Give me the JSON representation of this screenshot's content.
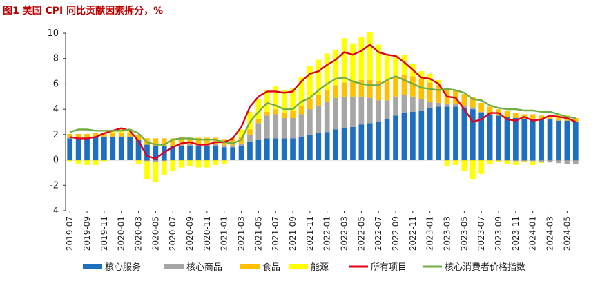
{
  "figure": {
    "title": "图1  美国 CPI 同比贡献因素拆分，%"
  },
  "chart_data": {
    "type": "bar",
    "stacked": true,
    "x": [
      "2019-07",
      "2019-08",
      "2019-09",
      "2019-10",
      "2019-11",
      "2019-12",
      "2020-01",
      "2020-02",
      "2020-03",
      "2020-04",
      "2020-05",
      "2020-06",
      "2020-07",
      "2020-08",
      "2020-09",
      "2020-10",
      "2020-11",
      "2020-12",
      "2021-01",
      "2021-02",
      "2021-03",
      "2021-04",
      "2021-05",
      "2021-06",
      "2021-07",
      "2021-08",
      "2021-09",
      "2021-10",
      "2021-11",
      "2021-12",
      "2022-01",
      "2022-02",
      "2022-03",
      "2022-04",
      "2022-05",
      "2022-06",
      "2022-07",
      "2022-08",
      "2022-09",
      "2022-10",
      "2022-11",
      "2022-12",
      "2023-01",
      "2023-02",
      "2023-03",
      "2023-04",
      "2023-05",
      "2023-06",
      "2023-07",
      "2023-08",
      "2023-09",
      "2023-10",
      "2023-11",
      "2023-12",
      "2024-01",
      "2024-02",
      "2024-03",
      "2024-04",
      "2024-05",
      "2024-06"
    ],
    "x_tick_labels": [
      "2019-07",
      "2019-09",
      "2019-11",
      "2020-01",
      "2020-03",
      "2020-05",
      "2020-07",
      "2020-09",
      "2020-11",
      "2021-01",
      "2021-03",
      "2021-05",
      "2021-07",
      "2021-09",
      "2021-11",
      "2022-01",
      "2022-03",
      "2022-05",
      "2022-07",
      "2022-09",
      "2022-11",
      "2023-01",
      "2023-03",
      "2023-05",
      "2023-07",
      "2023-09",
      "2023-11",
      "2024-01",
      "2024-03",
      "2024-05"
    ],
    "ylim": [
      -4,
      10
    ],
    "y_ticks": [
      -4,
      -2,
      0,
      2,
      4,
      6,
      8,
      10
    ],
    "legend_position": "bottom",
    "series": [
      {
        "name": "核心服务",
        "kind": "bar",
        "color": "#1f6fc0",
        "values": [
          1.7,
          1.7,
          1.7,
          1.8,
          1.8,
          1.8,
          1.8,
          1.8,
          1.6,
          1.2,
          1.1,
          1.1,
          1.1,
          1.1,
          1.1,
          1.1,
          1.1,
          1.1,
          1.0,
          1.0,
          1.1,
          1.4,
          1.6,
          1.7,
          1.7,
          1.7,
          1.7,
          1.8,
          2.0,
          2.1,
          2.2,
          2.4,
          2.5,
          2.6,
          2.8,
          2.9,
          3.0,
          3.2,
          3.5,
          3.7,
          3.8,
          3.9,
          4.1,
          4.2,
          4.2,
          4.2,
          4.1,
          4.0,
          3.7,
          3.6,
          3.5,
          3.4,
          3.3,
          3.2,
          3.2,
          3.2,
          3.2,
          3.1,
          3.1,
          3.0
        ]
      },
      {
        "name": "核心商品",
        "kind": "bar",
        "color": "#a6a6a6",
        "values": [
          0.05,
          0.05,
          0.05,
          0.05,
          0.05,
          0.05,
          0.05,
          0.05,
          0.0,
          -0.1,
          -0.15,
          -0.1,
          0.0,
          0.1,
          0.15,
          0.15,
          0.15,
          0.15,
          0.15,
          0.15,
          0.2,
          0.6,
          1.3,
          1.8,
          1.9,
          1.6,
          1.6,
          1.8,
          2.0,
          2.2,
          2.4,
          2.5,
          2.5,
          2.4,
          2.2,
          2.0,
          1.7,
          1.5,
          1.5,
          1.4,
          1.2,
          0.9,
          0.5,
          0.3,
          0.2,
          0.2,
          0.2,
          0.15,
          0.1,
          0.0,
          -0.05,
          -0.05,
          -0.1,
          -0.1,
          -0.1,
          -0.15,
          -0.2,
          -0.25,
          -0.3,
          -0.35
        ]
      },
      {
        "name": "食品",
        "kind": "bar",
        "color": "#ffc000",
        "values": [
          0.3,
          0.3,
          0.3,
          0.3,
          0.3,
          0.3,
          0.3,
          0.3,
          0.4,
          0.5,
          0.6,
          0.6,
          0.6,
          0.6,
          0.5,
          0.5,
          0.5,
          0.5,
          0.5,
          0.5,
          0.5,
          0.4,
          0.3,
          0.3,
          0.4,
          0.4,
          0.6,
          0.7,
          0.8,
          0.8,
          0.9,
          1.0,
          1.1,
          1.2,
          1.3,
          1.4,
          1.5,
          1.6,
          1.6,
          1.6,
          1.6,
          1.6,
          1.5,
          1.4,
          1.2,
          1.1,
          0.9,
          0.8,
          0.7,
          0.6,
          0.5,
          0.5,
          0.4,
          0.4,
          0.4,
          0.3,
          0.3,
          0.3,
          0.3,
          0.3
        ]
      },
      {
        "name": "能源",
        "kind": "bar",
        "color": "#ffff00",
        "values": [
          -0.1,
          -0.3,
          -0.4,
          -0.4,
          -0.1,
          0.2,
          0.3,
          0.1,
          -0.3,
          -1.4,
          -1.6,
          -1.1,
          -0.9,
          -0.6,
          -0.5,
          -0.6,
          -0.6,
          -0.4,
          -0.3,
          0.1,
          0.6,
          1.4,
          1.6,
          1.7,
          1.8,
          1.8,
          1.8,
          2.2,
          2.6,
          2.8,
          2.9,
          2.8,
          3.5,
          3.0,
          3.4,
          3.8,
          2.9,
          2.0,
          1.7,
          1.6,
          1.0,
          0.6,
          0.7,
          0.4,
          -0.5,
          -0.4,
          -0.9,
          -1.5,
          -1.1,
          -0.3,
          -0.1,
          -0.3,
          -0.3,
          -0.1,
          -0.3,
          -0.1,
          0.0,
          0.2,
          0.1,
          0.0
        ]
      },
      {
        "name": "所有项目",
        "kind": "line",
        "color": "#e0001b",
        "values": [
          1.8,
          1.7,
          1.7,
          1.8,
          2.1,
          2.3,
          2.5,
          2.3,
          1.5,
          0.3,
          0.1,
          0.6,
          1.0,
          1.3,
          1.4,
          1.2,
          1.2,
          1.4,
          1.4,
          1.7,
          2.6,
          4.2,
          5.0,
          5.4,
          5.4,
          5.3,
          5.4,
          6.2,
          6.8,
          7.0,
          7.5,
          7.9,
          8.5,
          8.3,
          8.6,
          9.1,
          8.5,
          8.3,
          8.2,
          7.7,
          7.1,
          6.5,
          6.4,
          6.0,
          5.0,
          4.9,
          4.0,
          3.0,
          3.2,
          3.7,
          3.7,
          3.2,
          3.1,
          3.4,
          3.1,
          3.2,
          3.5,
          3.4,
          3.3,
          3.0
        ]
      },
      {
        "name": "核心消费者价格指数",
        "kind": "line",
        "color": "#70ad47",
        "values": [
          2.2,
          2.4,
          2.4,
          2.3,
          2.3,
          2.3,
          2.3,
          2.4,
          2.1,
          1.4,
          1.2,
          1.2,
          1.6,
          1.7,
          1.7,
          1.6,
          1.6,
          1.6,
          1.4,
          1.3,
          1.6,
          3.0,
          3.8,
          4.5,
          4.3,
          4.0,
          4.0,
          4.6,
          4.9,
          5.5,
          6.0,
          6.4,
          6.5,
          6.2,
          6.0,
          5.9,
          5.9,
          6.3,
          6.6,
          6.3,
          6.0,
          5.7,
          5.6,
          5.5,
          5.6,
          5.5,
          5.3,
          4.8,
          4.7,
          4.3,
          4.1,
          4.0,
          4.0,
          3.9,
          3.9,
          3.8,
          3.8,
          3.6,
          3.4,
          3.3
        ]
      }
    ]
  }
}
